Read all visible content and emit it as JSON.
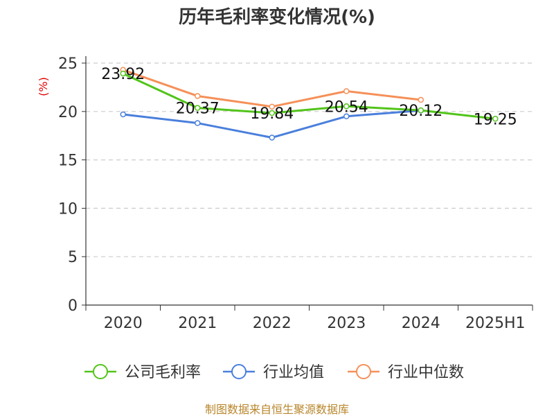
{
  "chart_data": {
    "type": "line",
    "title": "历年毛利率变化情况(%)",
    "ylabel": "(%)",
    "xlabel": "",
    "categories": [
      "2020",
      "2021",
      "2022",
      "2023",
      "2024",
      "2025H1"
    ],
    "ylim": [
      0,
      25
    ],
    "yticks": [
      0,
      5,
      10,
      15,
      20,
      25
    ],
    "grid": true,
    "legend_position": "bottom",
    "series": [
      {
        "name": "公司毛利率",
        "color": "#52c41a",
        "values": [
          23.92,
          20.37,
          19.84,
          20.54,
          20.12,
          19.25
        ],
        "labels": [
          "23.92",
          "20.37",
          "19.84",
          "20.54",
          "20.12",
          "19.25"
        ]
      },
      {
        "name": "行业均值",
        "color": "#4a7fdc",
        "values": [
          19.7,
          18.8,
          17.3,
          19.5,
          20.1,
          null
        ]
      },
      {
        "name": "行业中位数",
        "color": "#f59058",
        "values": [
          24.3,
          21.6,
          20.5,
          22.1,
          21.2,
          null
        ]
      }
    ]
  },
  "source": "制图数据来自恒生聚源数据库"
}
